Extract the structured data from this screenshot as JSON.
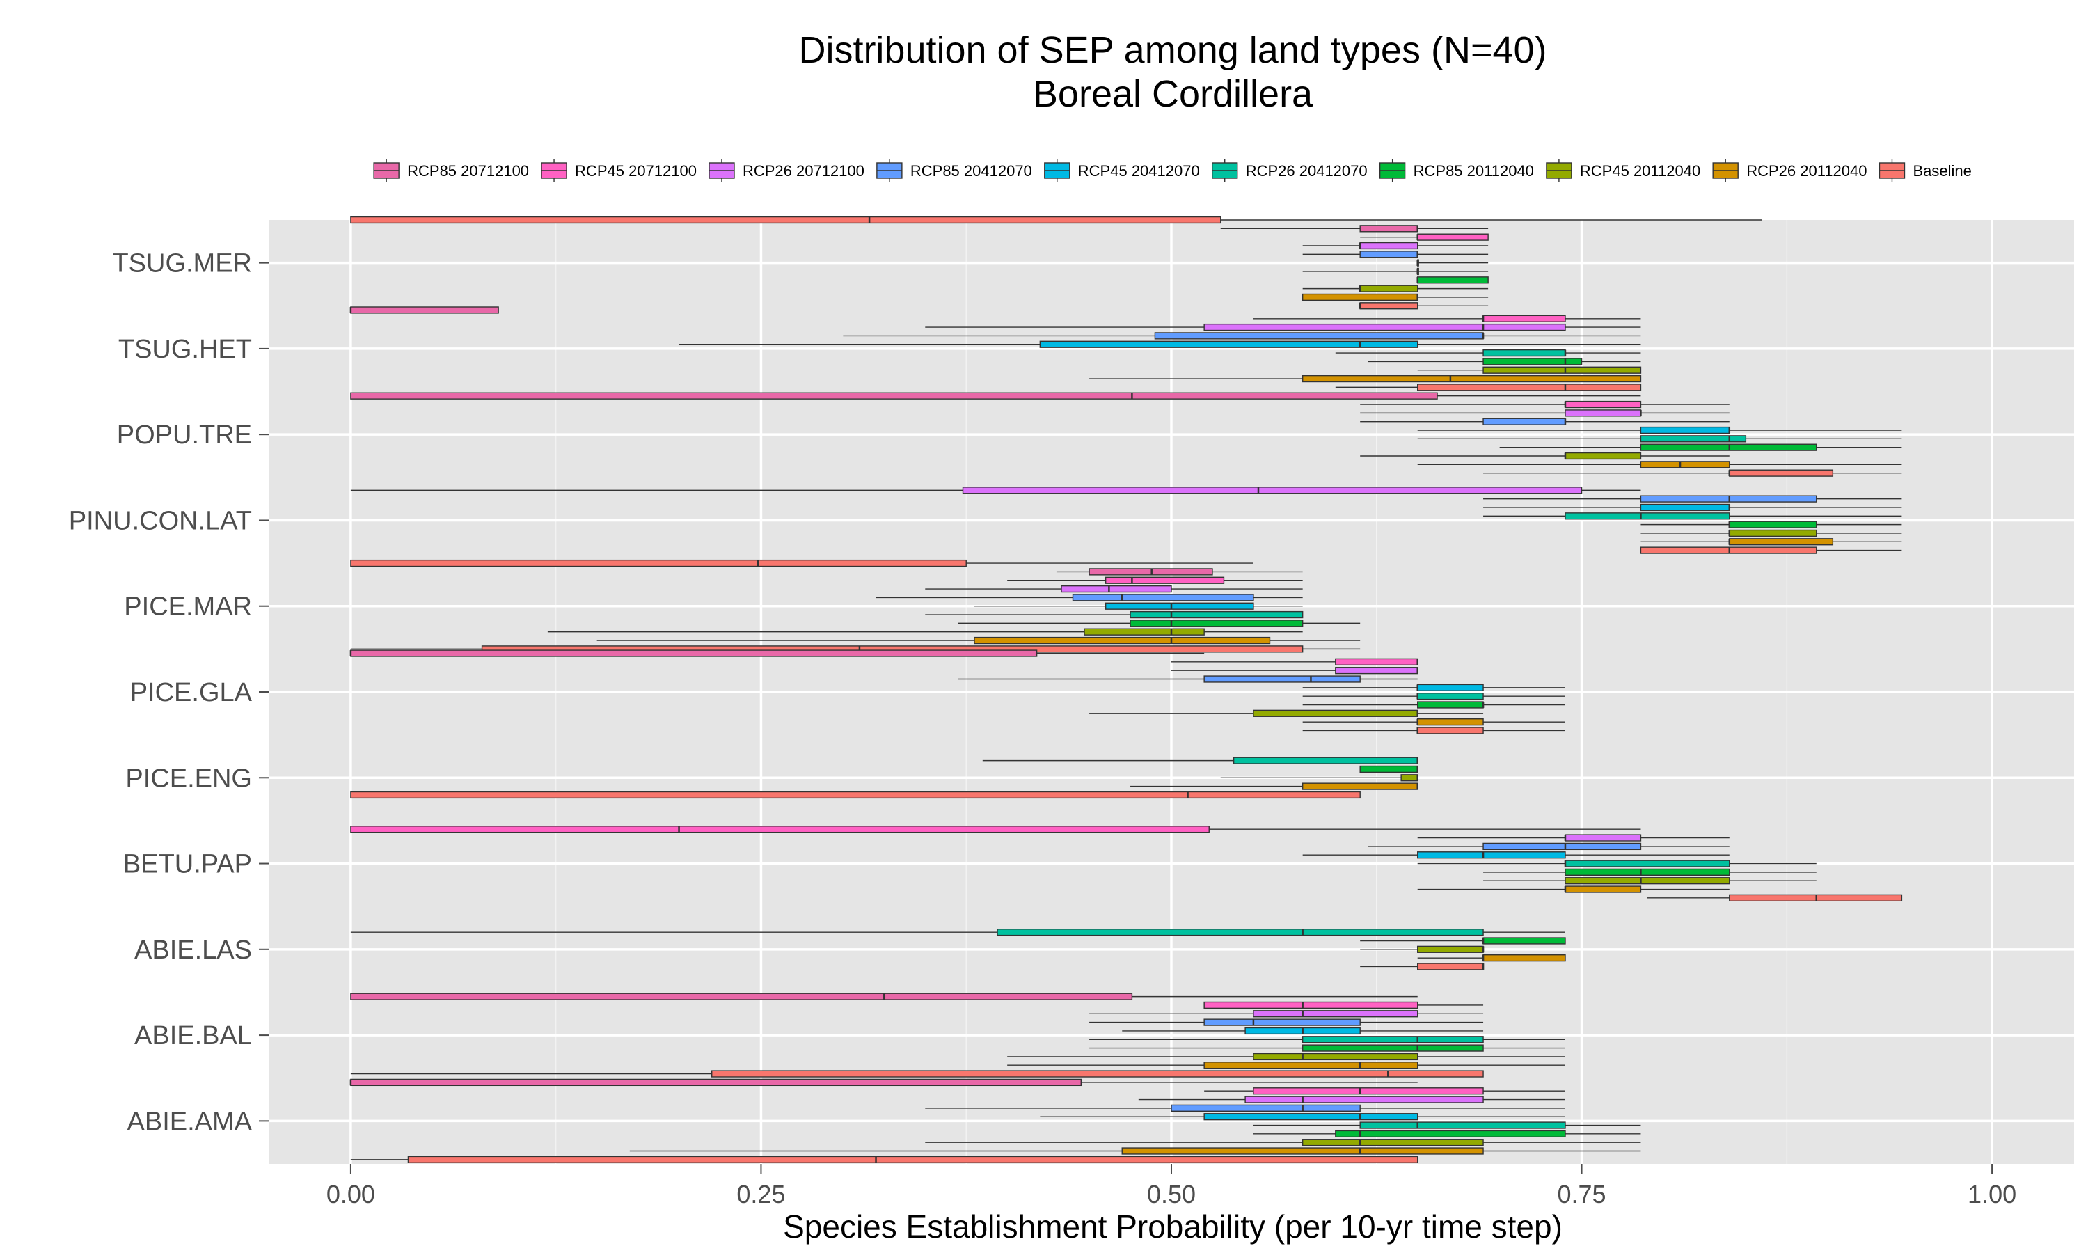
{
  "chart_data": {
    "type": "boxplot",
    "title": "Distribution of SEP among land types (N=40)",
    "subtitle": "Boreal Cordillera",
    "xlabel": "Species Establishment Probability (per 10-yr time step)",
    "ylabel": "",
    "xlim": [
      -0.05,
      1.05
    ],
    "xticks": [
      0.0,
      0.25,
      0.5,
      0.75,
      1.0
    ],
    "xtick_labels": [
      "0.00",
      "0.25",
      "0.50",
      "0.75",
      "1.00"
    ],
    "grid": true,
    "legend_position": "top",
    "series": [
      {
        "name": "Baseline",
        "color": "#F8766D"
      },
      {
        "name": "RCP26 20112040",
        "color": "#D39200"
      },
      {
        "name": "RCP45 20112040",
        "color": "#93AA00"
      },
      {
        "name": "RCP85 20112040",
        "color": "#00BA38"
      },
      {
        "name": "RCP26 20412070",
        "color": "#00C19F"
      },
      {
        "name": "RCP45 20412070",
        "color": "#00B9E3"
      },
      {
        "name": "RCP85 20412070",
        "color": "#619CFF"
      },
      {
        "name": "RCP26 20712100",
        "color": "#DB72FB"
      },
      {
        "name": "RCP45 20712100",
        "color": "#FF61C3"
      },
      {
        "name": "RCP85 20712100",
        "color": "#E868A8"
      }
    ],
    "categories": [
      "TSUG.MER",
      "TSUG.HET",
      "POPU.TRE",
      "PINU.CON.LAT",
      "PICE.MAR",
      "PICE.GLA",
      "PICE.ENG",
      "BETU.PAP",
      "ABIE.LAS",
      "ABIE.BAL",
      "ABIE.AMA"
    ],
    "boxes": [
      {
        "species": "TSUG.MER",
        "stats": [
          [
            0,
            0,
            0.316,
            0.53,
            0.86
          ],
          [
            0.53,
            0.615,
            0.65,
            0.65,
            0.693
          ],
          [
            0.615,
            0.65,
            0.65,
            0.693,
            0.693
          ],
          [
            0.58,
            0.615,
            0.615,
            0.65,
            0.693
          ],
          [
            0.58,
            0.615,
            0.65,
            0.65,
            0.693
          ],
          [
            0.65,
            0.65,
            0.65,
            0.65,
            0.693
          ],
          [
            0.58,
            0.65,
            0.65,
            0.65,
            0.693
          ],
          [
            0.65,
            0.65,
            0.65,
            0.693,
            0.693
          ],
          [
            0.58,
            0.615,
            0.615,
            0.65,
            0.693
          ],
          [
            0.58,
            0.58,
            0.65,
            0.65,
            0.693
          ],
          [
            0.615,
            0.615,
            0.615,
            0.65,
            0.693
          ]
        ]
      },
      {
        "species": "TSUG.HET",
        "stats": [
          [
            0,
            0,
            0,
            0.09,
            0.09
          ],
          [
            0.55,
            0.69,
            0.69,
            0.74,
            0.786
          ],
          [
            0.35,
            0.52,
            0.69,
            0.74,
            0.786
          ],
          [
            0.3,
            0.49,
            0.69,
            0.69,
            0.786
          ],
          [
            0.2,
            0.42,
            0.615,
            0.65,
            0.786
          ],
          [
            0.6,
            0.69,
            0.74,
            0.74,
            0.786
          ],
          [
            0.62,
            0.69,
            0.74,
            0.75,
            0.786
          ],
          [
            0.65,
            0.69,
            0.74,
            0.786,
            0.786
          ],
          [
            0.45,
            0.58,
            0.67,
            0.786,
            0.786
          ],
          [
            0.6,
            0.65,
            0.74,
            0.786,
            0.786
          ]
        ]
      },
      {
        "species": "POPU.TRE",
        "stats": [
          [
            0,
            0,
            0.476,
            0.662,
            0.786
          ],
          [
            0.615,
            0.74,
            0.74,
            0.786,
            0.84
          ],
          [
            0.615,
            0.74,
            0.786,
            0.786,
            0.84
          ],
          [
            0.615,
            0.69,
            0.74,
            0.74,
            0.84
          ],
          [
            0.65,
            0.786,
            0.84,
            0.84,
            0.945
          ],
          [
            0.65,
            0.786,
            0.84,
            0.85,
            0.945
          ],
          [
            0.7,
            0.786,
            0.84,
            0.893,
            0.945
          ],
          [
            0.615,
            0.74,
            0.74,
            0.786,
            0.84
          ],
          [
            0.65,
            0.786,
            0.81,
            0.84,
            0.945
          ],
          [
            0.69,
            0.84,
            0.84,
            0.903,
            0.945
          ]
        ]
      },
      {
        "species": "PINU.CON.LAT",
        "stats": [
          [
            0,
            0.373,
            0.553,
            0.75,
            0.786
          ],
          [
            0.69,
            0.786,
            0.84,
            0.893,
            0.945
          ],
          [
            0.69,
            0.786,
            0.84,
            0.84,
            0.945
          ],
          [
            0.69,
            0.74,
            0.786,
            0.84,
            0.945
          ],
          [
            0.786,
            0.84,
            0.84,
            0.893,
            0.945
          ],
          [
            0.786,
            0.84,
            0.84,
            0.893,
            0.945
          ],
          [
            0.786,
            0.84,
            0.84,
            0.903,
            0.945
          ],
          [
            0.786,
            0.786,
            0.84,
            0.893,
            0.945
          ]
        ]
      },
      {
        "species": "PICE.MAR",
        "stats": [
          [
            0,
            0,
            0.248,
            0.375,
            0.55
          ],
          [
            0.43,
            0.45,
            0.488,
            0.525,
            0.58
          ],
          [
            0.4,
            0.46,
            0.476,
            0.532,
            0.58
          ],
          [
            0.35,
            0.433,
            0.462,
            0.5,
            0.58
          ],
          [
            0.32,
            0.44,
            0.47,
            0.55,
            0.58
          ],
          [
            0.38,
            0.46,
            0.5,
            0.55,
            0.58
          ],
          [
            0.35,
            0.475,
            0.5,
            0.58,
            0.58
          ],
          [
            0.37,
            0.475,
            0.5,
            0.58,
            0.615
          ],
          [
            0.12,
            0.447,
            0.5,
            0.52,
            0.58
          ],
          [
            0.15,
            0.38,
            0.5,
            0.56,
            0.615
          ],
          [
            0,
            0.08,
            0.31,
            0.58,
            0.615
          ]
        ]
      },
      {
        "species": "PICE.GLA",
        "stats": [
          [
            0,
            0,
            0,
            0.418,
            0.52
          ],
          [
            0.5,
            0.6,
            0.65,
            0.65,
            0.65
          ],
          [
            0.5,
            0.6,
            0.65,
            0.65,
            0.65
          ],
          [
            0.37,
            0.52,
            0.585,
            0.615,
            0.65
          ],
          [
            0.58,
            0.65,
            0.65,
            0.69,
            0.74
          ],
          [
            0.58,
            0.65,
            0.65,
            0.69,
            0.74
          ],
          [
            0.58,
            0.65,
            0.69,
            0.69,
            0.74
          ],
          [
            0.45,
            0.55,
            0.65,
            0.65,
            0.69
          ],
          [
            0.58,
            0.65,
            0.65,
            0.69,
            0.74
          ],
          [
            0.58,
            0.65,
            0.65,
            0.69,
            0.74
          ]
        ]
      },
      {
        "species": "PICE.ENG",
        "stats": [
          [
            0.385,
            0.538,
            0.65,
            0.65,
            0.65
          ],
          [
            0.615,
            0.615,
            0.65,
            0.65,
            0.65
          ],
          [
            0.53,
            0.64,
            0.65,
            0.65,
            0.65
          ],
          [
            0.475,
            0.58,
            0.65,
            0.65,
            0.65
          ],
          [
            0,
            0,
            0.51,
            0.615,
            0.615
          ]
        ]
      },
      {
        "species": "BETU.PAP",
        "stats": [
          [
            0,
            0,
            0.2,
            0.523,
            0.786
          ],
          [
            0.65,
            0.74,
            0.74,
            0.786,
            0.84
          ],
          [
            0.62,
            0.69,
            0.74,
            0.786,
            0.84
          ],
          [
            0.58,
            0.65,
            0.69,
            0.74,
            0.84
          ],
          [
            0.65,
            0.74,
            0.74,
            0.84,
            0.893
          ],
          [
            0.69,
            0.74,
            0.786,
            0.84,
            0.893
          ],
          [
            0.69,
            0.74,
            0.786,
            0.84,
            0.893
          ],
          [
            0.65,
            0.74,
            0.74,
            0.786,
            0.84
          ],
          [
            0.79,
            0.84,
            0.893,
            0.945,
            0.945
          ]
        ]
      },
      {
        "species": "ABIE.LAS",
        "stats": [
          [
            0,
            0.394,
            0.58,
            0.69,
            0.74
          ],
          [
            0.615,
            0.69,
            0.69,
            0.74,
            0.74
          ],
          [
            0.615,
            0.65,
            0.69,
            0.69,
            0.69
          ],
          [
            0.65,
            0.69,
            0.69,
            0.74,
            0.74
          ],
          [
            0.615,
            0.65,
            0.69,
            0.69,
            0.69
          ]
        ]
      },
      {
        "species": "ABIE.BAL",
        "stats": [
          [
            0,
            0,
            0.325,
            0.476,
            0.65
          ],
          [
            0.52,
            0.52,
            0.58,
            0.65,
            0.69
          ],
          [
            0.45,
            0.55,
            0.58,
            0.65,
            0.69
          ],
          [
            0.45,
            0.52,
            0.55,
            0.615,
            0.69
          ],
          [
            0.47,
            0.545,
            0.58,
            0.615,
            0.69
          ],
          [
            0.45,
            0.58,
            0.65,
            0.69,
            0.74
          ],
          [
            0.45,
            0.58,
            0.65,
            0.69,
            0.74
          ],
          [
            0.4,
            0.55,
            0.58,
            0.65,
            0.74
          ],
          [
            0.4,
            0.52,
            0.615,
            0.65,
            0.74
          ],
          [
            0,
            0.22,
            0.632,
            0.69,
            0.69
          ]
        ]
      },
      {
        "species": "ABIE.AMA",
        "stats": [
          [
            0,
            0,
            0,
            0.445,
            0.65
          ],
          [
            0.52,
            0.55,
            0.615,
            0.69,
            0.74
          ],
          [
            0.48,
            0.545,
            0.58,
            0.69,
            0.74
          ],
          [
            0.35,
            0.5,
            0.58,
            0.615,
            0.74
          ],
          [
            0.42,
            0.52,
            0.615,
            0.65,
            0.74
          ],
          [
            0.55,
            0.615,
            0.65,
            0.74,
            0.786
          ],
          [
            0.55,
            0.6,
            0.615,
            0.74,
            0.786
          ],
          [
            0.35,
            0.58,
            0.615,
            0.69,
            0.786
          ],
          [
            0.17,
            0.47,
            0.615,
            0.69,
            0.786
          ],
          [
            0,
            0.035,
            0.32,
            0.65,
            0.65
          ]
        ]
      }
    ]
  }
}
